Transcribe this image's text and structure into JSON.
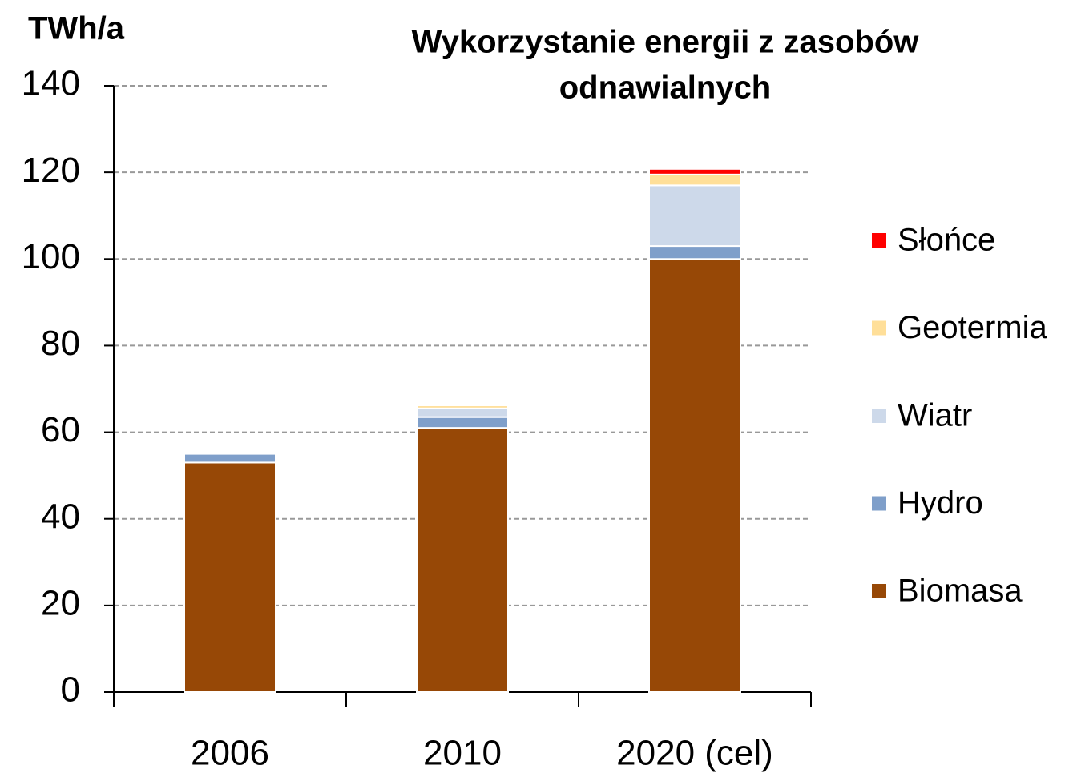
{
  "chart_data": {
    "type": "stacked_bar",
    "title": [
      "Wykorzystanie energii z zasobów",
      "odnawialnych"
    ],
    "y_label": "TWh/a",
    "categories": [
      "2006",
      "2010",
      "2020 (cel)"
    ],
    "series": [
      {
        "name": "Biomasa",
        "color": "#974806",
        "values": [
          53,
          61,
          100
        ]
      },
      {
        "name": "Hydro",
        "color": "#7f9fca",
        "values": [
          2,
          2.5,
          3
        ]
      },
      {
        "name": "Wiatr",
        "color": "#cdd9ea",
        "values": [
          0,
          2,
          14
        ]
      },
      {
        "name": "Geotermia",
        "color": "#ffdf99",
        "values": [
          0,
          0.7,
          2.5
        ]
      },
      {
        "name": "Słońce",
        "color": "#ff0000",
        "values": [
          0,
          0,
          1.3
        ]
      }
    ],
    "ylim": [
      0,
      140
    ],
    "yticks": [
      0,
      20,
      40,
      60,
      80,
      100,
      120,
      140
    ],
    "grid": true,
    "legend": "right"
  }
}
